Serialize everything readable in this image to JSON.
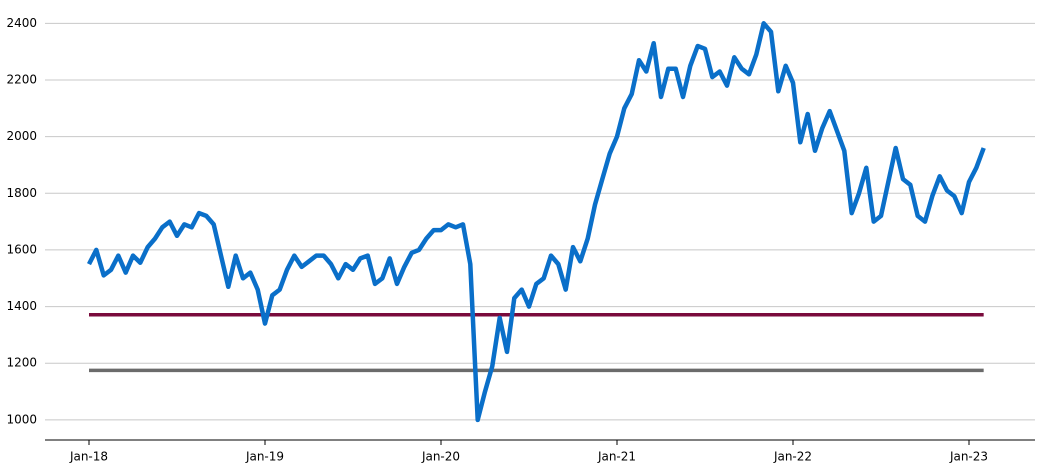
{
  "chart_data": {
    "type": "line",
    "categories": [
      "Jan-18",
      null,
      null,
      null,
      null,
      null,
      null,
      null,
      null,
      null,
      null,
      null,
      null,
      null,
      null,
      null,
      null,
      null,
      null,
      null,
      null,
      null,
      null,
      null,
      "Jan-19",
      null,
      null,
      null,
      null,
      null,
      null,
      null,
      null,
      null,
      null,
      null,
      null,
      null,
      null,
      null,
      null,
      null,
      null,
      null,
      null,
      null,
      null,
      null,
      "Jan-20",
      null,
      null,
      null,
      null,
      null,
      null,
      null,
      null,
      null,
      null,
      null,
      null,
      null,
      null,
      null,
      null,
      null,
      null,
      null,
      null,
      null,
      null,
      null,
      "Jan-21",
      null,
      null,
      null,
      null,
      null,
      null,
      null,
      null,
      null,
      null,
      null,
      null,
      null,
      null,
      null,
      null,
      null,
      null,
      null,
      null,
      null,
      null,
      null,
      "Jan-22",
      null,
      null,
      null,
      null,
      null,
      null,
      null,
      null,
      null,
      null,
      null,
      null,
      null,
      null,
      null,
      null,
      null,
      null,
      null,
      null,
      null,
      null,
      null,
      "Jan-23",
      null,
      null
    ],
    "series": [
      {
        "color": "#0a6fc9",
        "values": [
          1550,
          1600,
          1510,
          1530,
          1580,
          1520,
          1580,
          1555,
          1610,
          1640,
          1680,
          1700,
          1650,
          1690,
          1680,
          1730,
          1720,
          1690,
          1580,
          1470,
          1580,
          1500,
          1520,
          1460,
          1340,
          1440,
          1460,
          1530,
          1580,
          1540,
          1560,
          1580,
          1580,
          1550,
          1500,
          1550,
          1530,
          1570,
          1580,
          1480,
          1500,
          1570,
          1480,
          1540,
          1590,
          1600,
          1640,
          1670,
          1670,
          1690,
          1680,
          1690,
          1550,
          1000,
          1100,
          1190,
          1360,
          1240,
          1430,
          1460,
          1400,
          1480,
          1500,
          1580,
          1550,
          1460,
          1610,
          1560,
          1640,
          1760,
          1850,
          1940,
          2000,
          2100,
          2150,
          2270,
          2230,
          2330,
          2140,
          2240,
          2240,
          2140,
          2250,
          2320,
          2310,
          2210,
          2230,
          2180,
          2280,
          2240,
          2220,
          2290,
          2400,
          2370,
          2160,
          2250,
          2190,
          1980,
          2080,
          1950,
          2030,
          2090,
          2020,
          1950,
          1730,
          1800,
          1890,
          1700,
          1720,
          1840,
          1960,
          1850,
          1830,
          1720,
          1700,
          1790,
          1860,
          1810,
          1790,
          1730,
          1840,
          1890,
          1960
        ]
      }
    ],
    "reference_lines": [
      {
        "value": 1371,
        "color": "#7a0b3c"
      },
      {
        "value": 1175,
        "color": "#6b6b6b"
      }
    ],
    "ylim": [
      929,
      2440
    ],
    "yticks": [
      1000,
      1200,
      1400,
      1600,
      1800,
      2000,
      2200,
      2400
    ],
    "grid": true
  }
}
